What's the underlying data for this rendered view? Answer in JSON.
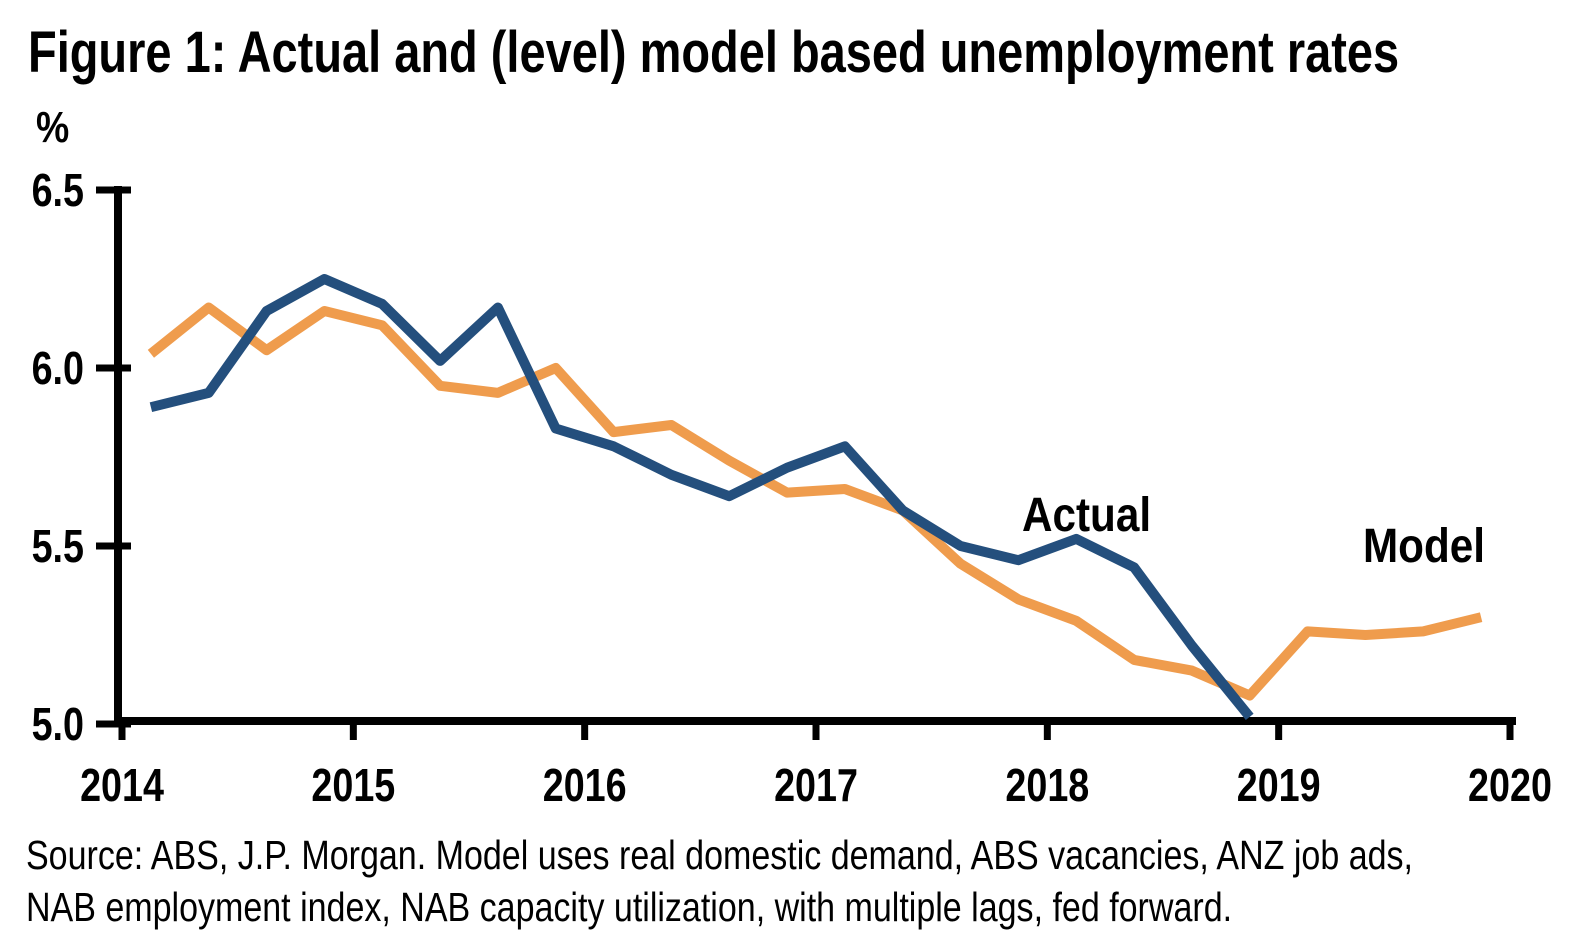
{
  "title": "Figure 1: Actual and (level) model based unemployment rates",
  "y_axis": {
    "unit_label": "%",
    "tick_labels": [
      "6.5",
      "6.0",
      "5.5",
      "5.0"
    ],
    "tick_values": [
      6.5,
      6.0,
      5.5,
      5.0
    ]
  },
  "x_axis": {
    "tick_labels": [
      "2014",
      "2015",
      "2016",
      "2017",
      "2018",
      "2019",
      "2020"
    ],
    "tick_values": [
      2014,
      2015,
      2016,
      2017,
      2018,
      2019,
      2020
    ]
  },
  "annotations": {
    "actual_label": "Actual",
    "model_label": "Model"
  },
  "source_note": {
    "line1": "Source: ABS, J.P. Morgan. Model uses real domestic demand, ABS vacancies, ANZ job ads,",
    "line2": "NAB employment index, NAB capacity utilization, with multiple lags, fed forward."
  },
  "colors": {
    "actual": "#244F7D",
    "model": "#EF9C4D",
    "axis": "#000000"
  },
  "chart_data": {
    "type": "line",
    "title": "Figure 1: Actual and (level) model based unemployment rates",
    "ylabel": "%",
    "xlabel": "",
    "ylim": [
      5.0,
      6.5
    ],
    "xlim": [
      2014,
      2020
    ],
    "grid": false,
    "legend_position": "inline-annotations",
    "x_unit": "decimal_year_quarterly_midpoints",
    "series": [
      {
        "name": "Actual",
        "color": "#244F7D",
        "x": [
          2014.125,
          2014.375,
          2014.625,
          2014.875,
          2015.125,
          2015.375,
          2015.625,
          2015.875,
          2016.125,
          2016.375,
          2016.625,
          2016.875,
          2017.125,
          2017.375,
          2017.625,
          2017.875,
          2018.125,
          2018.375,
          2018.625,
          2018.875
        ],
        "values": [
          5.89,
          5.93,
          6.16,
          6.25,
          6.18,
          6.02,
          6.17,
          5.83,
          5.78,
          5.7,
          5.64,
          5.72,
          5.78,
          5.6,
          5.5,
          5.46,
          5.52,
          5.44,
          5.22,
          5.02
        ]
      },
      {
        "name": "Model",
        "color": "#EF9C4D",
        "x": [
          2014.125,
          2014.375,
          2014.625,
          2014.875,
          2015.125,
          2015.375,
          2015.625,
          2015.875,
          2016.125,
          2016.375,
          2016.625,
          2016.875,
          2017.125,
          2017.375,
          2017.625,
          2017.875,
          2018.125,
          2018.375,
          2018.625,
          2018.875,
          2019.125,
          2019.375,
          2019.625,
          2019.875
        ],
        "values": [
          6.04,
          6.17,
          6.05,
          6.16,
          6.12,
          5.95,
          5.93,
          6.0,
          5.82,
          5.84,
          5.74,
          5.65,
          5.66,
          5.6,
          5.45,
          5.35,
          5.29,
          5.18,
          5.15,
          5.08,
          5.26,
          5.25,
          5.26,
          5.3
        ]
      }
    ]
  }
}
